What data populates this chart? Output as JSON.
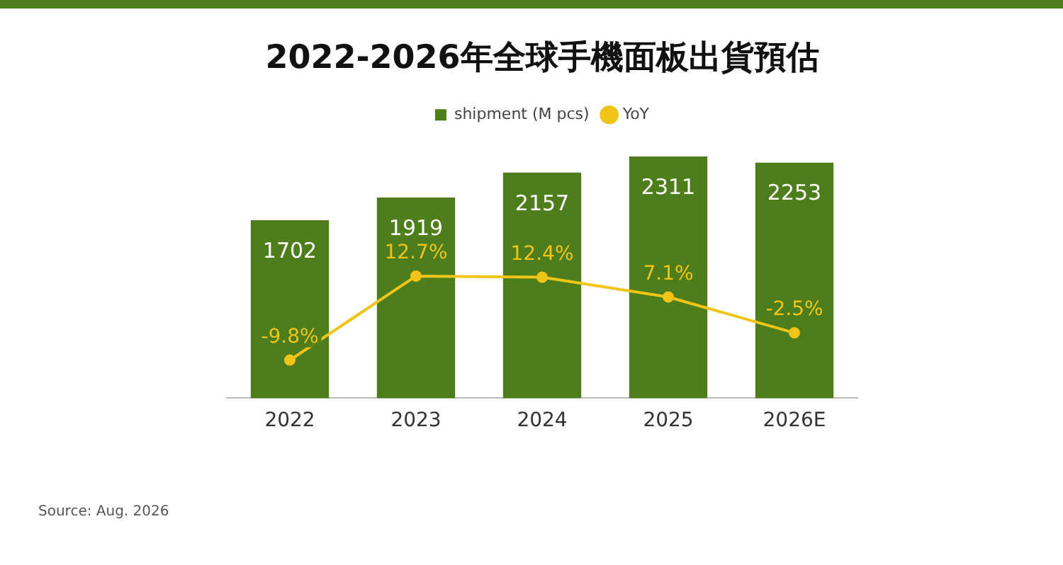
{
  "chart_data": {
    "type": "bar",
    "title": "2022-2026年全球手機面板出貨預估",
    "categories": [
      "2022",
      "2023",
      "2024",
      "2025",
      "2026E"
    ],
    "series": [
      {
        "name": "shipment (M pcs)",
        "color": "#4e7d1b",
        "values": [
          1702,
          1919,
          2157,
          2311,
          2253
        ]
      },
      {
        "name": "YoY",
        "type": "line",
        "axis": "y2",
        "color": "#f0c419",
        "values": [
          -9.8,
          12.7,
          12.4,
          7.1,
          -2.5
        ],
        "value_labels": [
          "-9.8%",
          "12.7%",
          "12.4%",
          "7.1%",
          "-2.5%"
        ]
      }
    ],
    "data_labels": true,
    "tick_labels": "x",
    "legend": "top",
    "grid": false,
    "marker": "circle",
    "line_style": "solid",
    "annotations": [
      "Source: Aug. 2026"
    ]
  }
}
